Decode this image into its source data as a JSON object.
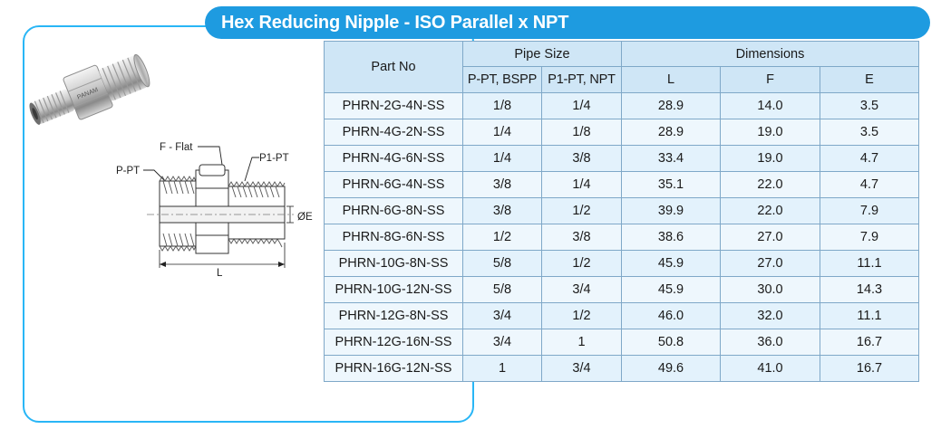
{
  "title": "Hex Reducing Nipple - ISO Parallel x NPT",
  "drawing": {
    "f_label": "F - Flat",
    "p_label": "P-PT",
    "p1_label": "P1-PT",
    "e_label": "ØE",
    "l_label": "L",
    "brand": "PANAM"
  },
  "table": {
    "part_no_header": "Part No",
    "pipe_size_header": "Pipe Size",
    "dimensions_header": "Dimensions",
    "sub_headers": [
      "P-PT, BSPP",
      "P1-PT, NPT",
      "L",
      "F",
      "E"
    ],
    "rows": [
      [
        "PHRN-2G-4N-SS",
        "1/8",
        "1/4",
        "28.9",
        "14.0",
        "3.5"
      ],
      [
        "PHRN-4G-2N-SS",
        "1/4",
        "1/8",
        "28.9",
        "19.0",
        "3.5"
      ],
      [
        "PHRN-4G-6N-SS",
        "1/4",
        "3/8",
        "33.4",
        "19.0",
        "4.7"
      ],
      [
        "PHRN-6G-4N-SS",
        "3/8",
        "1/4",
        "35.1",
        "22.0",
        "4.7"
      ],
      [
        "PHRN-6G-8N-SS",
        "3/8",
        "1/2",
        "39.9",
        "22.0",
        "7.9"
      ],
      [
        "PHRN-8G-6N-SS",
        "1/2",
        "3/8",
        "38.6",
        "27.0",
        "7.9"
      ],
      [
        "PHRN-10G-8N-SS",
        "5/8",
        "1/2",
        "45.9",
        "27.0",
        "11.1"
      ],
      [
        "PHRN-10G-12N-SS",
        "5/8",
        "3/4",
        "45.9",
        "30.0",
        "14.3"
      ],
      [
        "PHRN-12G-8N-SS",
        "3/4",
        "1/2",
        "46.0",
        "32.0",
        "11.1"
      ],
      [
        "PHRN-12G-16N-SS",
        "3/4",
        "1",
        "50.8",
        "36.0",
        "16.7"
      ],
      [
        "PHRN-16G-12N-SS",
        "1",
        "3/4",
        "49.6",
        "41.0",
        "16.7"
      ]
    ]
  },
  "colors": {
    "accent": "#1e9be0",
    "panel_border": "#29b6f6",
    "header_bg": "#cfe6f6",
    "row_bg": "#e3f2fc"
  }
}
